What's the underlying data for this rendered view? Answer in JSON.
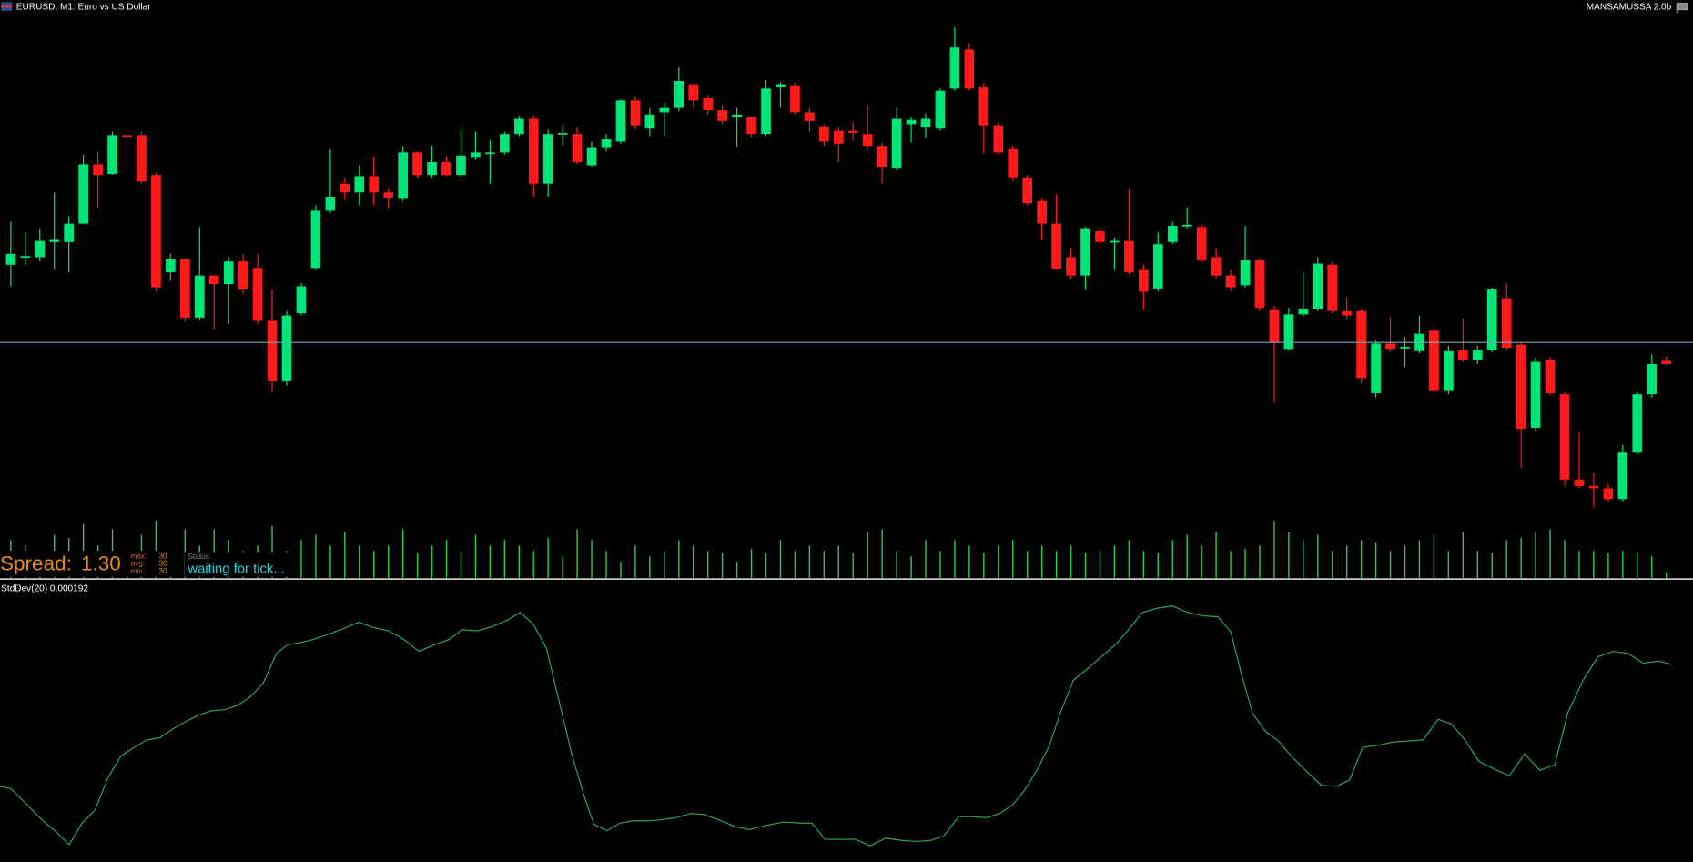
{
  "header": {
    "symbol": "EURUSD, M1:  Euro vs US Dollar",
    "indicator": "MANSAMUSSA 2.0b"
  },
  "spread": {
    "label": "Spread:",
    "value": "1.30",
    "stats": [
      {
        "label": "max:",
        "value": "30"
      },
      {
        "label": "avg:",
        "value": "30"
      },
      {
        "label": "min:",
        "value": "30"
      }
    ],
    "status_label": "Status",
    "status": "waiting for tick..."
  },
  "stddev": {
    "label": "StdDev(20) 0.000192"
  }
}
